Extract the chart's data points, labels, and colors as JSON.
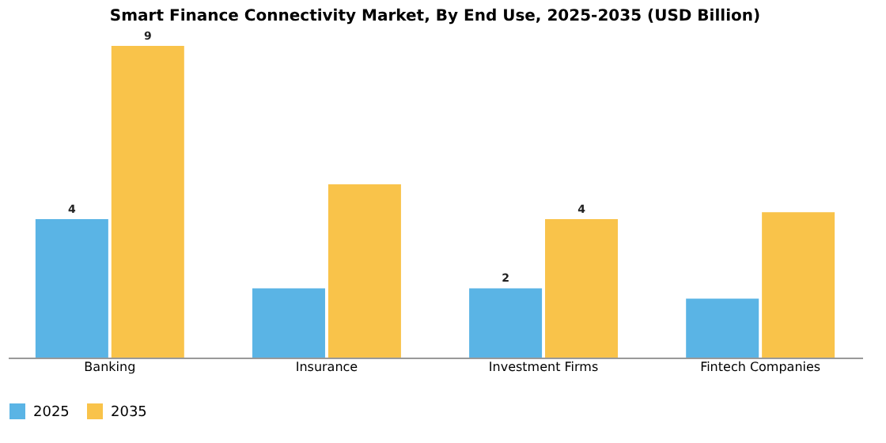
{
  "chart_data": {
    "type": "bar",
    "title": "Smart Finance Connectivity Market, By End Use, 2025-2035 (USD Billion)",
    "categories": [
      "Banking",
      "Insurance",
      "Investment Firms",
      "Fintech Companies"
    ],
    "series": [
      {
        "name": "2025",
        "color": "#5ab4e5",
        "values": [
          4,
          2.0,
          2,
          1.7
        ],
        "value_labels": [
          "4",
          null,
          "2",
          null
        ]
      },
      {
        "name": "2035",
        "color": "#f9c34a",
        "values": [
          9,
          5.0,
          4,
          4.2
        ],
        "value_labels": [
          "9",
          null,
          "4",
          null
        ]
      }
    ],
    "legend": "bottom"
  }
}
